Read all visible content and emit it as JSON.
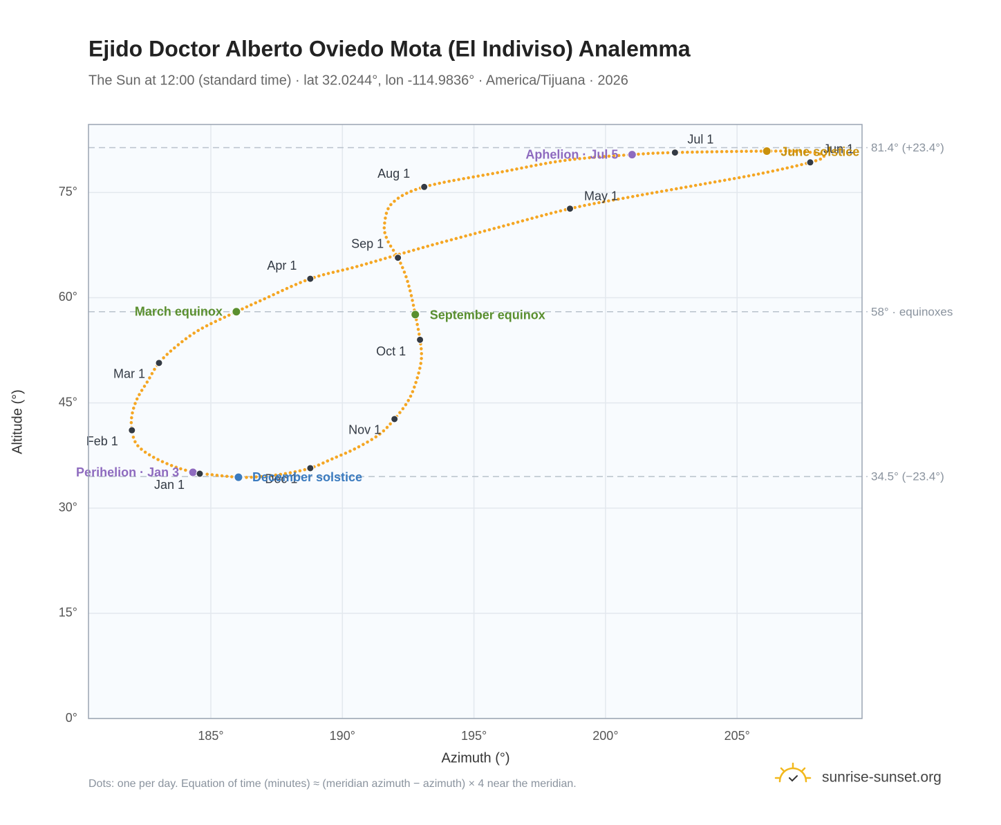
{
  "chart_data": {
    "type": "analemma",
    "title": "Ejido Doctor Alberto Oviedo Mota (El Indiviso) Analemma",
    "subtitle": "The Sun at 12:00 (standard time) · lat 32.0244°, lon -114.9836° · America/Tijuana · 2026",
    "x_label": "Azimuth (°)",
    "y_label": "Altitude (°)",
    "footnote": "Dots: one per day. Equation of time (minutes) ≈ (meridian azimuth − azimuth) × 4 near the meridian.",
    "brand": "sunrise-sunset.org",
    "xlim": [
      180.35,
      209.75
    ],
    "ylim": [
      0,
      84.7
    ],
    "xticks": [
      {
        "value": 185,
        "label": "185°"
      },
      {
        "value": 190,
        "label": "190°"
      },
      {
        "value": 195,
        "label": "195°"
      },
      {
        "value": 200,
        "label": "200°"
      },
      {
        "value": 205,
        "label": "205°"
      }
    ],
    "yticks": [
      {
        "value": 0,
        "label": "0°"
      },
      {
        "value": 15,
        "label": "15°"
      },
      {
        "value": 30,
        "label": "30°"
      },
      {
        "value": 45,
        "label": "45°"
      },
      {
        "value": 60,
        "label": "60°"
      },
      {
        "value": 75,
        "label": "75°"
      }
    ],
    "grid": true,
    "series": [
      {
        "color": "#f5a623",
        "x": [
          184.58,
          183.7,
          182.8,
          182.2,
          182.0,
          182.0,
          182.2,
          182.6,
          183.03,
          183.7,
          184.6,
          185.97,
          186.9,
          188.78,
          190.6,
          193.2,
          195.9,
          198.65,
          201.0,
          203.7,
          205.9,
          207.78,
          208.3,
          207.6,
          206.13,
          202.64,
          201.01,
          198.5,
          196.0,
          193.11,
          191.9,
          191.6,
          191.7,
          192.11,
          192.4,
          192.6,
          192.77,
          192.95,
          193.0,
          192.8,
          192.5,
          191.98,
          191.4,
          190.5,
          189.6,
          188.78,
          187.8,
          186.9,
          186.05,
          184.7
        ],
        "y": [
          34.9,
          35.8,
          37.3,
          39.0,
          41.1,
          43.2,
          45.6,
          48.1,
          50.7,
          53.1,
          55.5,
          58.0,
          59.6,
          62.7,
          64.5,
          67.3,
          70.0,
          72.7,
          74.4,
          76.2,
          77.7,
          79.3,
          80.2,
          80.8,
          80.9,
          80.7,
          80.4,
          79.6,
          77.9,
          75.8,
          73.5,
          70.5,
          68.3,
          65.7,
          63.2,
          60.6,
          57.6,
          54.0,
          51.2,
          48.0,
          45.3,
          42.7,
          40.5,
          38.5,
          37.0,
          35.7,
          34.9,
          34.5,
          34.4,
          34.9
        ]
      }
    ],
    "ref_lines": [
      {
        "value": 81.4,
        "label": "81.4° (+23.4°)"
      },
      {
        "value": 58,
        "label": "58° · equinoxes"
      },
      {
        "value": 34.5,
        "label": "34.5° (−23.4°)"
      }
    ],
    "markers": [
      {
        "label": "Perihelion · Jan 3",
        "x": 184.32,
        "y": 35.1,
        "color": "#8e6bbf"
      },
      {
        "label": "Jan 1",
        "x": 184.58,
        "y": 34.9,
        "color": "#333a44"
      },
      {
        "label": "Feb 1",
        "x": 182.0,
        "y": 41.1,
        "color": "#333a44"
      },
      {
        "label": "Mar 1",
        "x": 183.03,
        "y": 50.7,
        "color": "#333a44"
      },
      {
        "label": "March equinox",
        "x": 185.97,
        "y": 58.0,
        "color": "#5a8f2f"
      },
      {
        "label": "Apr 1",
        "x": 188.78,
        "y": 62.7,
        "color": "#333a44"
      },
      {
        "label": "May 1",
        "x": 198.65,
        "y": 72.7,
        "color": "#333a44"
      },
      {
        "label": "Jun 1",
        "x": 207.78,
        "y": 79.3,
        "color": "#333a44"
      },
      {
        "label": "June solstice",
        "x": 206.13,
        "y": 80.9,
        "color": "#c9900c"
      },
      {
        "label": "Jul 1",
        "x": 202.64,
        "y": 80.7,
        "color": "#333a44"
      },
      {
        "label": "Aphelion · Jul 5",
        "x": 201.01,
        "y": 80.4,
        "color": "#8e6bbf"
      },
      {
        "label": "Aug 1",
        "x": 193.11,
        "y": 75.8,
        "color": "#333a44"
      },
      {
        "label": "Sep 1",
        "x": 192.11,
        "y": 65.7,
        "color": "#333a44"
      },
      {
        "label": "September equinox",
        "x": 192.77,
        "y": 57.6,
        "color": "#5a8f2f"
      },
      {
        "label": "Oct 1",
        "x": 192.95,
        "y": 54.0,
        "color": "#333a44"
      },
      {
        "label": "Nov 1",
        "x": 191.98,
        "y": 42.7,
        "color": "#333a44"
      },
      {
        "label": "Dec 1",
        "x": 188.78,
        "y": 35.7,
        "color": "#333a44"
      },
      {
        "label": "December solstice",
        "x": 186.05,
        "y": 34.4,
        "color": "#3b7bbf"
      }
    ]
  }
}
